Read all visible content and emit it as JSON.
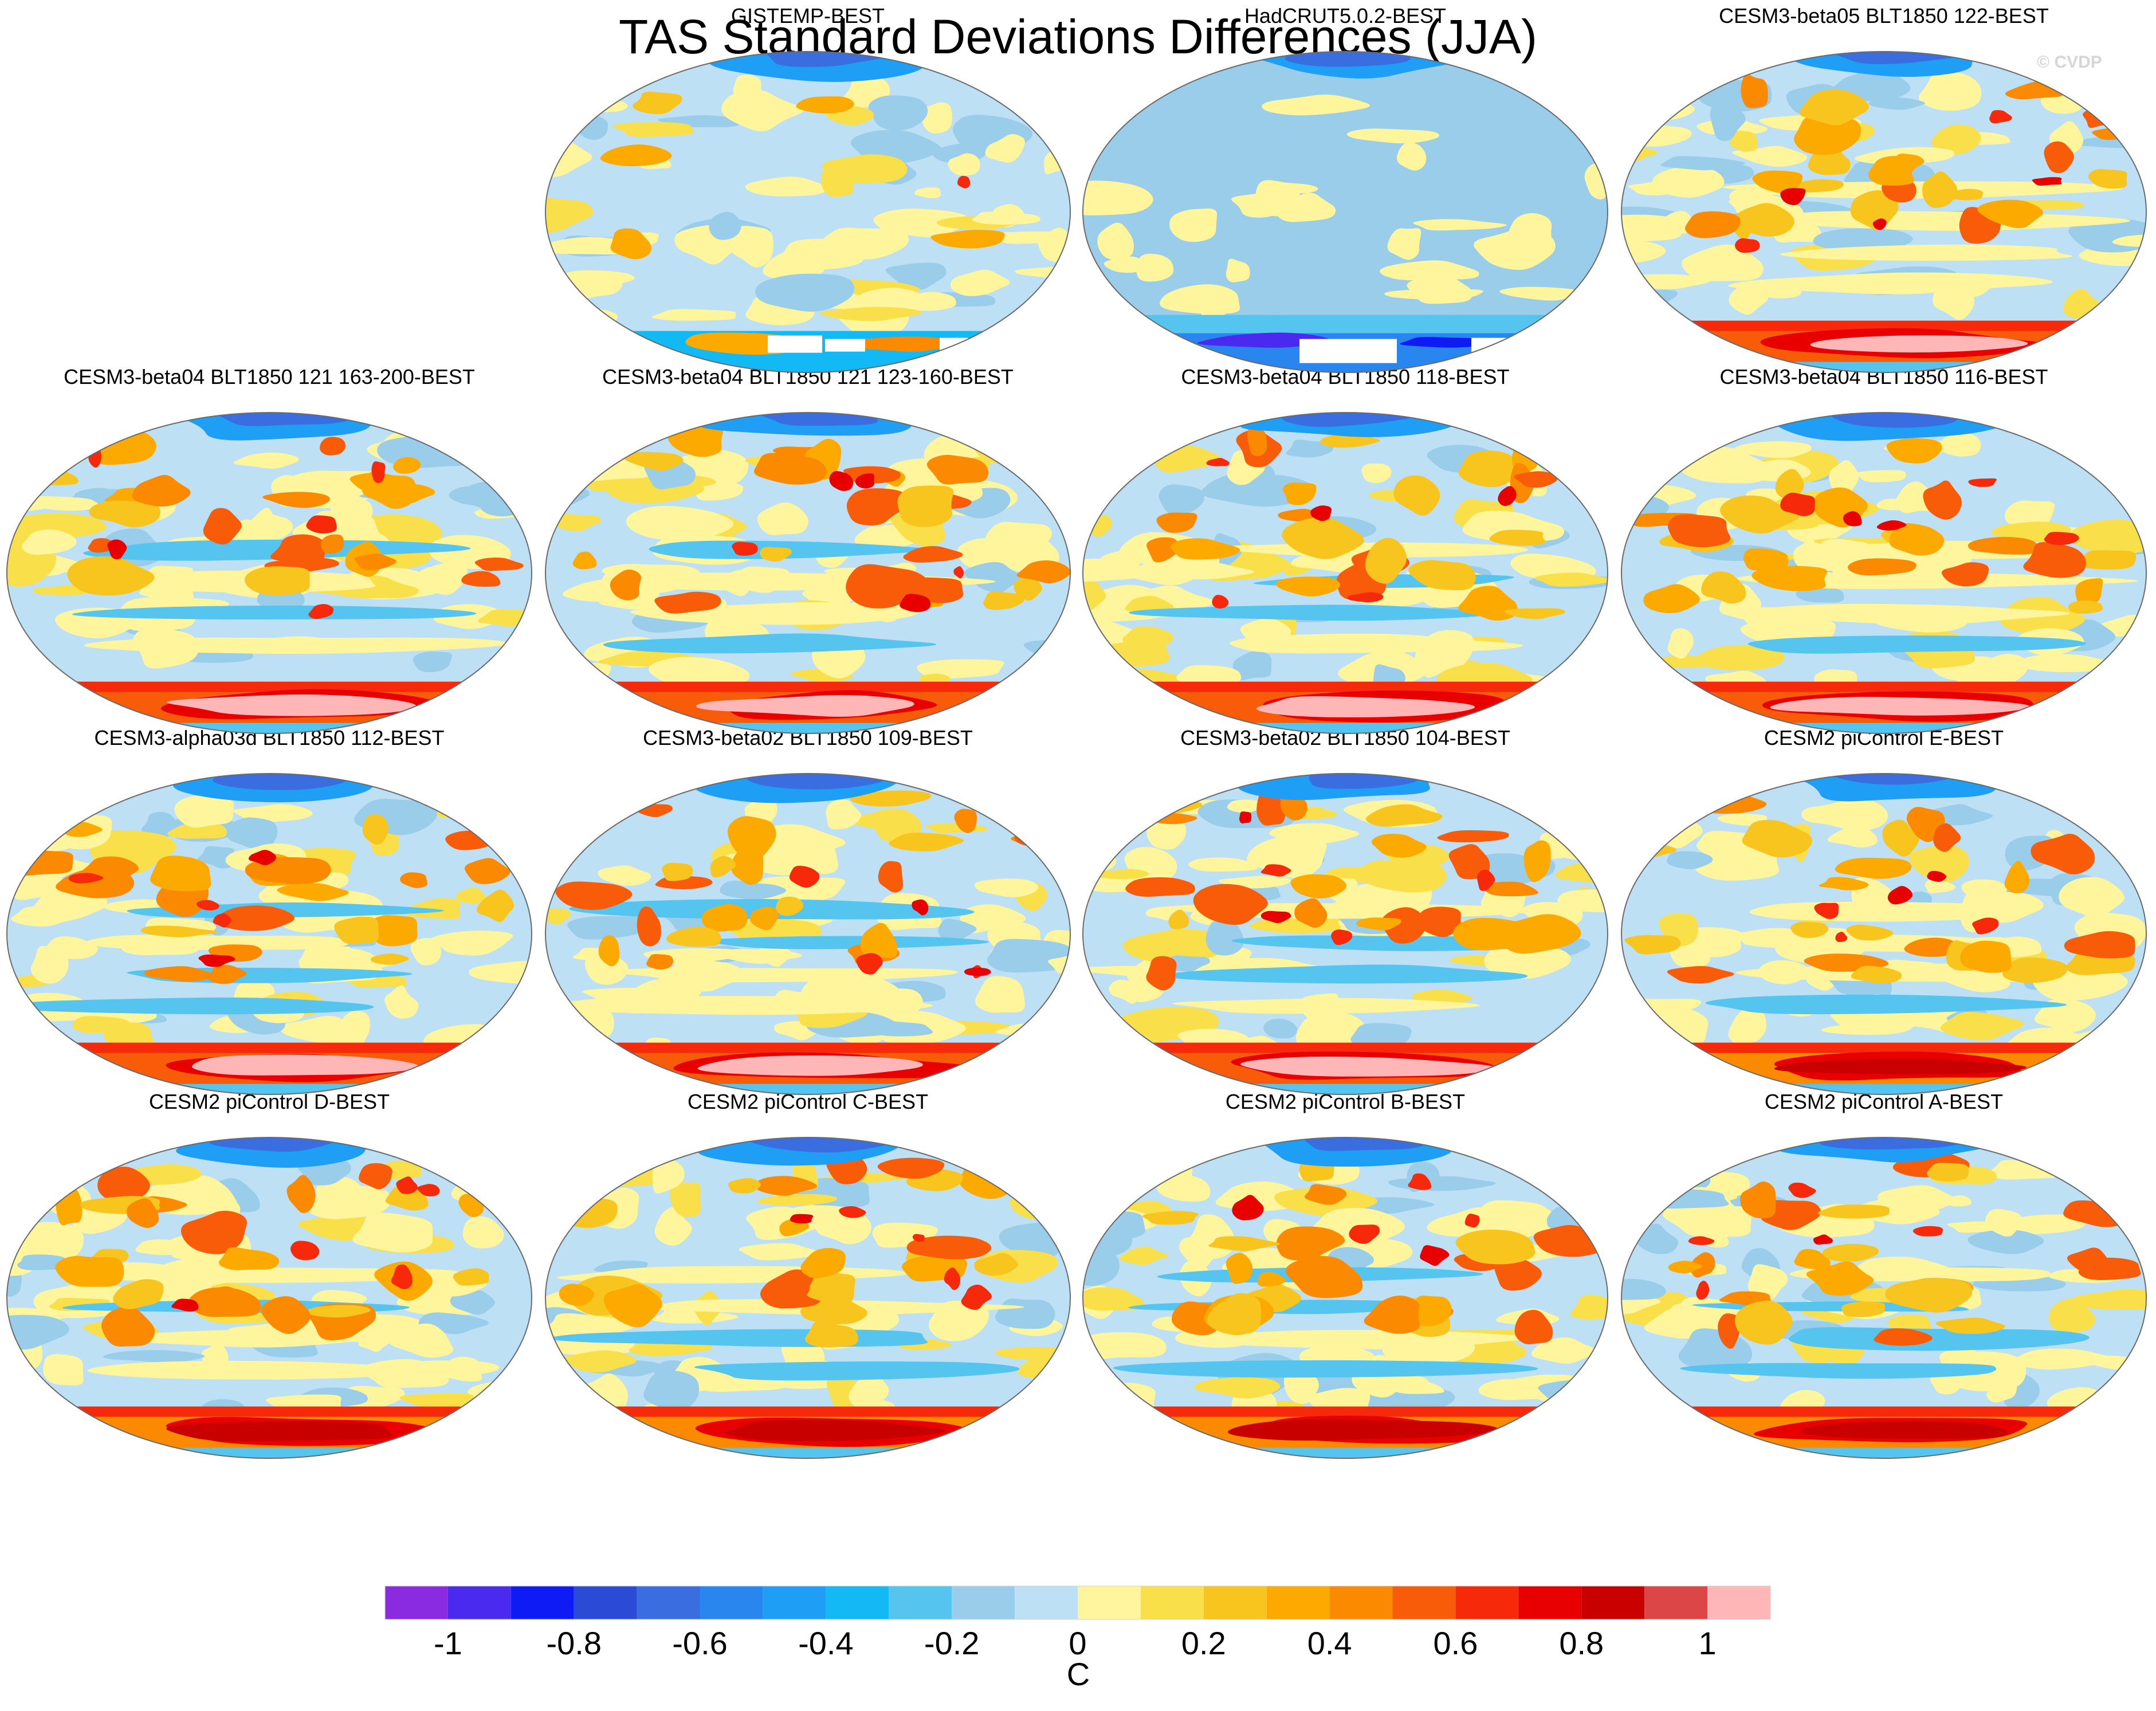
{
  "title": "TAS Standard Deviations Differences (JJA)",
  "watermark": "© CVDP",
  "panels": [
    {
      "title": "GISTEMP-BEST",
      "style": "obs1"
    },
    {
      "title": "HadCRUT5.0.2-BEST",
      "style": "obs2"
    },
    {
      "title": "CESM3-beta05 BLT1850 122-BEST",
      "style": "model"
    },
    {
      "title": "CESM3-beta04 BLT1850 121 163-200-BEST",
      "style": "model"
    },
    {
      "title": "CESM3-beta04 BLT1850 121 123-160-BEST",
      "style": "model"
    },
    {
      "title": "CESM3-beta04 BLT1850 118-BEST",
      "style": "model"
    },
    {
      "title": "CESM3-beta04 BLT1850 116-BEST",
      "style": "model"
    },
    {
      "title": "CESM3-alpha03d BLT1850 112-BEST",
      "style": "model"
    },
    {
      "title": "CESM3-beta02 BLT1850 109-BEST",
      "style": "model"
    },
    {
      "title": "CESM3-beta02 BLT1850 104-BEST",
      "style": "model"
    },
    {
      "title": "CESM2 piControl E-BEST",
      "style": "pic"
    },
    {
      "title": "CESM2 piControl D-BEST",
      "style": "pic"
    },
    {
      "title": "CESM2 piControl C-BEST",
      "style": "pic"
    },
    {
      "title": "CESM2 piControl B-BEST",
      "style": "pic"
    },
    {
      "title": "CESM2 piControl A-BEST",
      "style": "pic"
    }
  ],
  "colorbar": {
    "units": "C",
    "tick_labels": [
      "-1",
      "-0.8",
      "-0.6",
      "-0.4",
      "-0.2",
      "0",
      "0.2",
      "0.4",
      "0.6",
      "0.8",
      "1"
    ],
    "tick_values": [
      -1,
      -0.8,
      -0.6,
      -0.4,
      -0.2,
      0,
      0.2,
      0.4,
      0.6,
      0.8,
      1
    ],
    "levels": [
      -1.1,
      -1.0,
      -0.9,
      -0.8,
      -0.7,
      -0.6,
      -0.5,
      -0.4,
      -0.3,
      -0.2,
      -0.1,
      0,
      0.1,
      0.2,
      0.3,
      0.4,
      0.5,
      0.6,
      0.7,
      0.8,
      0.9,
      1.0,
      1.1
    ],
    "colors": [
      "#8a2be2",
      "#4b2af0",
      "#0f1bf5",
      "#2b4ad6",
      "#3a6ee0",
      "#2a86ef",
      "#1e9ef5",
      "#12b9f5",
      "#55c5f0",
      "#99cdea",
      "#bee0f5",
      "#fff59d",
      "#f9e04a",
      "#f8c41e",
      "#fcaa00",
      "#fc8a00",
      "#f85c08",
      "#f62a0a",
      "#e80000",
      "#c80000",
      "#dc4646",
      "#ffb6b6"
    ]
  }
}
